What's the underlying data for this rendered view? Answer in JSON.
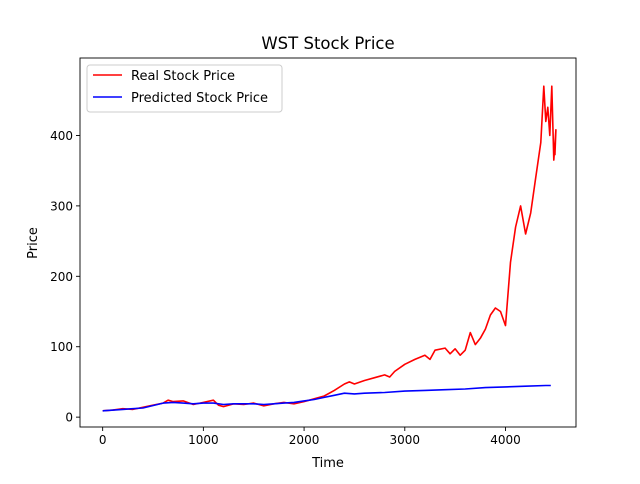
{
  "chart_data": {
    "type": "line",
    "title": "WST Stock Price",
    "xlabel": "Time",
    "ylabel": "Price",
    "xlim": [
      -225,
      4700
    ],
    "ylim": [
      -14,
      510
    ],
    "x_ticks": [
      0,
      1000,
      2000,
      3000,
      4000
    ],
    "y_ticks": [
      0,
      100,
      200,
      300,
      400
    ],
    "grid": false,
    "legend_position": "top-left",
    "series": [
      {
        "name": "Real Stock Price",
        "color": "#ff0000",
        "points": [
          [
            0,
            9
          ],
          [
            100,
            10
          ],
          [
            200,
            12
          ],
          [
            300,
            11
          ],
          [
            400,
            14
          ],
          [
            500,
            17
          ],
          [
            600,
            20
          ],
          [
            650,
            24
          ],
          [
            700,
            22
          ],
          [
            800,
            23
          ],
          [
            900,
            18
          ],
          [
            1000,
            21
          ],
          [
            1100,
            24
          ],
          [
            1150,
            17
          ],
          [
            1200,
            15
          ],
          [
            1300,
            19
          ],
          [
            1400,
            18
          ],
          [
            1500,
            20
          ],
          [
            1600,
            16
          ],
          [
            1700,
            19
          ],
          [
            1800,
            21
          ],
          [
            1900,
            19
          ],
          [
            2000,
            22
          ],
          [
            2100,
            26
          ],
          [
            2200,
            30
          ],
          [
            2300,
            38
          ],
          [
            2400,
            47
          ],
          [
            2450,
            50
          ],
          [
            2500,
            47
          ],
          [
            2600,
            52
          ],
          [
            2700,
            56
          ],
          [
            2800,
            60
          ],
          [
            2850,
            57
          ],
          [
            2900,
            65
          ],
          [
            3000,
            75
          ],
          [
            3100,
            82
          ],
          [
            3200,
            88
          ],
          [
            3250,
            82
          ],
          [
            3300,
            95
          ],
          [
            3400,
            98
          ],
          [
            3450,
            90
          ],
          [
            3500,
            97
          ],
          [
            3550,
            88
          ],
          [
            3600,
            95
          ],
          [
            3650,
            120
          ],
          [
            3700,
            103
          ],
          [
            3750,
            112
          ],
          [
            3800,
            125
          ],
          [
            3850,
            145
          ],
          [
            3900,
            155
          ],
          [
            3950,
            150
          ],
          [
            4000,
            130
          ],
          [
            4050,
            220
          ],
          [
            4100,
            270
          ],
          [
            4150,
            300
          ],
          [
            4200,
            260
          ],
          [
            4250,
            290
          ],
          [
            4300,
            340
          ],
          [
            4350,
            390
          ],
          [
            4380,
            470
          ],
          [
            4400,
            420
          ],
          [
            4420,
            440
          ],
          [
            4440,
            400
          ],
          [
            4460,
            470
          ],
          [
            4480,
            365
          ],
          [
            4500,
            408
          ],
          [
            4490,
            372
          ]
        ]
      },
      {
        "name": "Predicted Stock Price",
        "color": "#0000ff",
        "points": [
          [
            0,
            9
          ],
          [
            200,
            11
          ],
          [
            400,
            13
          ],
          [
            600,
            20
          ],
          [
            700,
            21
          ],
          [
            800,
            20
          ],
          [
            900,
            19
          ],
          [
            1000,
            20
          ],
          [
            1100,
            20
          ],
          [
            1200,
            18
          ],
          [
            1300,
            19
          ],
          [
            1400,
            19
          ],
          [
            1500,
            19
          ],
          [
            1600,
            18
          ],
          [
            1700,
            19
          ],
          [
            1800,
            20
          ],
          [
            1900,
            21
          ],
          [
            2000,
            23
          ],
          [
            2100,
            25
          ],
          [
            2200,
            28
          ],
          [
            2300,
            31
          ],
          [
            2400,
            34
          ],
          [
            2500,
            33
          ],
          [
            2600,
            34
          ],
          [
            2800,
            35
          ],
          [
            3000,
            37
          ],
          [
            3200,
            38
          ],
          [
            3400,
            39
          ],
          [
            3600,
            40
          ],
          [
            3800,
            42
          ],
          [
            4000,
            43
          ],
          [
            4200,
            44
          ],
          [
            4400,
            45
          ],
          [
            4450,
            45
          ]
        ]
      }
    ]
  }
}
